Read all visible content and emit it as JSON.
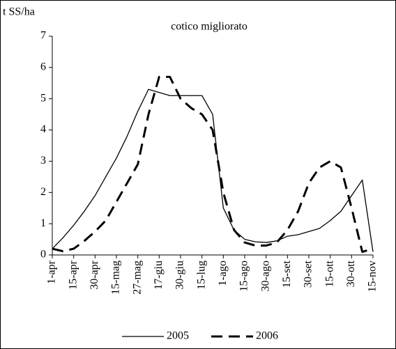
{
  "chart_data": {
    "type": "line",
    "title": "cotico migliorato",
    "y_label": "t SS/ha",
    "categories": [
      "1-apr",
      null,
      "15-apr",
      null,
      "30-apr",
      null,
      "15-mag",
      null,
      "27-mag",
      null,
      "17-giu",
      null,
      "30-giu",
      null,
      "15-lug",
      null,
      "1-ago",
      null,
      "15-ago",
      null,
      "30-ago",
      null,
      "15-set",
      null,
      "30-set",
      null,
      "15-ott",
      null,
      "30-ott",
      null,
      "15-nov"
    ],
    "series": [
      {
        "name": "2005",
        "color": "#000000",
        "dash": "solid",
        "values": [
          0.2,
          0.55,
          0.95,
          1.4,
          1.9,
          2.5,
          3.1,
          3.8,
          4.6,
          5.3,
          5.2,
          5.1,
          5.1,
          5.1,
          5.1,
          4.5,
          1.5,
          0.8,
          0.5,
          0.42,
          0.4,
          0.45,
          0.6,
          0.65,
          0.75,
          0.85,
          1.1,
          1.4,
          1.9,
          2.4,
          0.1
        ]
      },
      {
        "name": "2006",
        "color": "#000000",
        "dash": "dashed",
        "values": [
          0.2,
          0.12,
          0.2,
          0.45,
          0.75,
          1.1,
          1.7,
          2.3,
          2.9,
          4.5,
          5.7,
          5.7,
          5.0,
          4.7,
          4.5,
          4.0,
          2.0,
          0.8,
          0.4,
          0.3,
          0.3,
          0.4,
          0.8,
          1.4,
          2.3,
          2.8,
          3.0,
          2.8,
          1.5,
          0.1,
          0.2
        ]
      }
    ],
    "ylim": [
      0,
      7
    ],
    "yticks": [
      0,
      1,
      2,
      3,
      4,
      5,
      6,
      7
    ],
    "grid": false,
    "legend": "bottom"
  }
}
